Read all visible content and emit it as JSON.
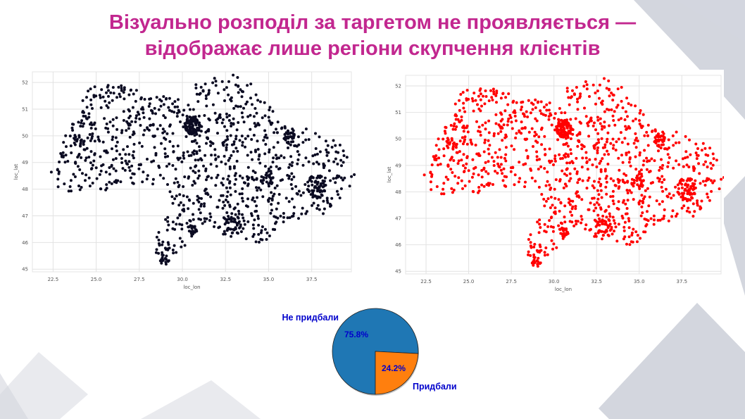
{
  "title": {
    "line1": "Візуально розподіл за таргетом не проявляється —",
    "line2": "відображає лише регіони скупчення клієнтів"
  },
  "colors": {
    "title": "#c2278f",
    "left_points": "#0b0b22",
    "right_points": "#ff0000",
    "pie_not_bought": "#1f77b4",
    "pie_bought": "#ff7f0e",
    "pie_labels": "#0000cc",
    "background_shapes": "#d3d6de"
  },
  "chart_data": [
    {
      "type": "scatter",
      "name_hint": "left",
      "xlabel": "loc_lon",
      "ylabel": "loc_lat",
      "xlim": [
        21.3,
        39.8
      ],
      "ylim": [
        44.9,
        52.4
      ],
      "xticks": [
        "22.5",
        "25.0",
        "27.5",
        "30.0",
        "32.5",
        "35.0",
        "37.5"
      ],
      "yticks": [
        "45",
        "46",
        "47",
        "48",
        "49",
        "50",
        "51",
        "52"
      ],
      "grid": true,
      "point_color": "#0b0b22",
      "points_note_free": true
    },
    {
      "type": "scatter",
      "name_hint": "right",
      "xlabel": "loc_lon",
      "ylabel": "loc_lat",
      "xlim": [
        21.3,
        39.8
      ],
      "ylim": [
        44.9,
        52.4
      ],
      "xticks": [
        "22.5",
        "25.0",
        "27.5",
        "30.0",
        "32.5",
        "35.0",
        "37.5"
      ],
      "yticks": [
        "45",
        "46",
        "47",
        "48",
        "49",
        "50",
        "51",
        "52"
      ],
      "grid": true,
      "point_color": "#ff0000"
    },
    {
      "type": "pie",
      "labels": [
        "Не придбали",
        "Придбали"
      ],
      "values": [
        75.8,
        24.2
      ],
      "value_labels": [
        "75.8%",
        "24.2%"
      ]
    }
  ]
}
